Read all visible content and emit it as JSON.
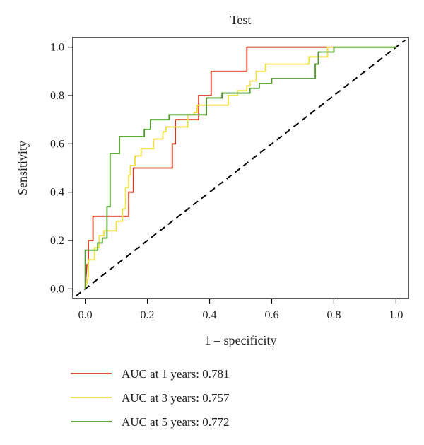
{
  "chart_data": {
    "type": "line",
    "title": "Test",
    "xlabel": "1 – specificity",
    "ylabel": "Sensitivity",
    "xlim": [
      -0.04,
      1.04
    ],
    "ylim": [
      -0.04,
      1.04
    ],
    "x_ticks": [
      "0.0",
      "0.2",
      "0.4",
      "0.6",
      "0.8",
      "1.0"
    ],
    "y_ticks": [
      "0.0",
      "0.2",
      "0.4",
      "0.6",
      "0.8",
      "1.0"
    ],
    "legend_position": "bottom",
    "reference_line": {
      "from": [
        0,
        0
      ],
      "to": [
        1,
        1
      ],
      "style": "dashed",
      "color": "#000000"
    },
    "series": [
      {
        "name": "AUC at 1 years: 0.781",
        "color": "#d2361f",
        "points": [
          [
            0,
            0
          ],
          [
            0.005,
            0.1
          ],
          [
            0.01,
            0.1
          ],
          [
            0.01,
            0.2
          ],
          [
            0.025,
            0.2
          ],
          [
            0.025,
            0.3
          ],
          [
            0.14,
            0.3
          ],
          [
            0.14,
            0.4
          ],
          [
            0.155,
            0.4
          ],
          [
            0.155,
            0.5
          ],
          [
            0.28,
            0.5
          ],
          [
            0.28,
            0.6
          ],
          [
            0.29,
            0.6
          ],
          [
            0.29,
            0.7
          ],
          [
            0.365,
            0.7
          ],
          [
            0.365,
            0.8
          ],
          [
            0.405,
            0.8
          ],
          [
            0.405,
            0.9
          ],
          [
            0.52,
            0.9
          ],
          [
            0.52,
            1.0
          ],
          [
            0.8,
            1.0
          ]
        ]
      },
      {
        "name": "AUC at 3 years: 0.757",
        "color": "#f0e03a",
        "points": [
          [
            0,
            0
          ],
          [
            0.01,
            0.05
          ],
          [
            0.01,
            0.12
          ],
          [
            0.03,
            0.12
          ],
          [
            0.03,
            0.17
          ],
          [
            0.045,
            0.17
          ],
          [
            0.045,
            0.22
          ],
          [
            0.06,
            0.22
          ],
          [
            0.06,
            0.24
          ],
          [
            0.1,
            0.24
          ],
          [
            0.1,
            0.28
          ],
          [
            0.12,
            0.28
          ],
          [
            0.12,
            0.33
          ],
          [
            0.13,
            0.33
          ],
          [
            0.13,
            0.42
          ],
          [
            0.14,
            0.42
          ],
          [
            0.14,
            0.47
          ],
          [
            0.145,
            0.47
          ],
          [
            0.145,
            0.51
          ],
          [
            0.16,
            0.51
          ],
          [
            0.16,
            0.55
          ],
          [
            0.18,
            0.55
          ],
          [
            0.18,
            0.58
          ],
          [
            0.22,
            0.58
          ],
          [
            0.22,
            0.62
          ],
          [
            0.25,
            0.62
          ],
          [
            0.25,
            0.65
          ],
          [
            0.26,
            0.65
          ],
          [
            0.26,
            0.67
          ],
          [
            0.33,
            0.67
          ],
          [
            0.33,
            0.72
          ],
          [
            0.35,
            0.72
          ],
          [
            0.35,
            0.73
          ],
          [
            0.36,
            0.73
          ],
          [
            0.36,
            0.76
          ],
          [
            0.46,
            0.76
          ],
          [
            0.46,
            0.8
          ],
          [
            0.49,
            0.8
          ],
          [
            0.49,
            0.82
          ],
          [
            0.52,
            0.82
          ],
          [
            0.52,
            0.84
          ],
          [
            0.53,
            0.84
          ],
          [
            0.53,
            0.86
          ],
          [
            0.55,
            0.86
          ],
          [
            0.55,
            0.9
          ],
          [
            0.58,
            0.9
          ],
          [
            0.58,
            0.93
          ],
          [
            0.72,
            0.93
          ],
          [
            0.72,
            0.96
          ],
          [
            0.78,
            0.96
          ],
          [
            0.78,
            1.0
          ],
          [
            1.0,
            1.0
          ]
        ]
      },
      {
        "name": "AUC at 5 years: 0.772",
        "color": "#4e9a2a",
        "points": [
          [
            0,
            0
          ],
          [
            0,
            0.16
          ],
          [
            0.04,
            0.16
          ],
          [
            0.04,
            0.19
          ],
          [
            0.055,
            0.19
          ],
          [
            0.055,
            0.21
          ],
          [
            0.07,
            0.21
          ],
          [
            0.07,
            0.34
          ],
          [
            0.08,
            0.34
          ],
          [
            0.08,
            0.56
          ],
          [
            0.11,
            0.56
          ],
          [
            0.11,
            0.63
          ],
          [
            0.19,
            0.63
          ],
          [
            0.19,
            0.66
          ],
          [
            0.21,
            0.66
          ],
          [
            0.21,
            0.7
          ],
          [
            0.27,
            0.7
          ],
          [
            0.27,
            0.72
          ],
          [
            0.39,
            0.72
          ],
          [
            0.39,
            0.79
          ],
          [
            0.44,
            0.79
          ],
          [
            0.44,
            0.81
          ],
          [
            0.53,
            0.81
          ],
          [
            0.53,
            0.83
          ],
          [
            0.56,
            0.83
          ],
          [
            0.56,
            0.85
          ],
          [
            0.6,
            0.85
          ],
          [
            0.6,
            0.87
          ],
          [
            0.74,
            0.87
          ],
          [
            0.74,
            0.93
          ],
          [
            0.75,
            0.93
          ],
          [
            0.75,
            0.98
          ],
          [
            0.8,
            0.98
          ],
          [
            0.8,
            1.0
          ],
          [
            1.0,
            1.0
          ]
        ]
      }
    ]
  }
}
